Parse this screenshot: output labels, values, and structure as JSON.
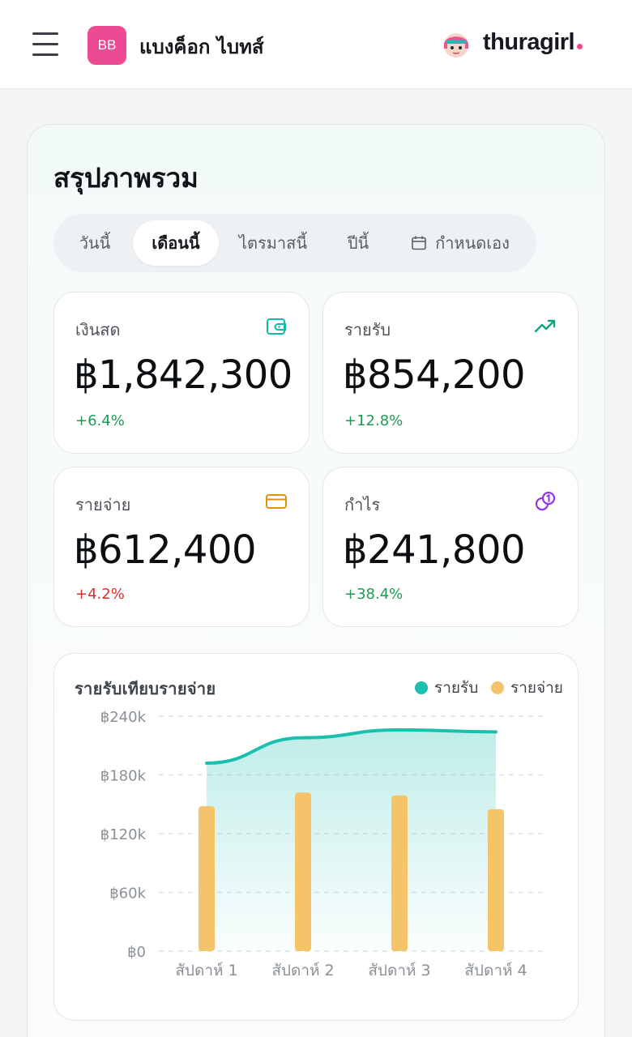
{
  "header": {
    "menu_icon": "hamburger-menu-icon",
    "brand_initials": "BB",
    "brand_name": "แบงค็อก ไบทส์",
    "avatar_icon": "user-avatar-icon",
    "user_name": "thuragirl",
    "brand_color": "#ee4a93"
  },
  "overview": {
    "title": "สรุปภาพรวม",
    "tabs": [
      {
        "label": "วันนี้",
        "active": false
      },
      {
        "label": "เดือนนี้",
        "active": true
      },
      {
        "label": "ไตรมาสนี้",
        "active": false
      },
      {
        "label": "ปีนี้",
        "active": false
      },
      {
        "label": "กำหนดเอง",
        "active": false,
        "icon": "calendar-icon"
      }
    ],
    "cards": [
      {
        "label": "เงินสด",
        "value": "฿1,842,300",
        "change": "+6.4%",
        "trend": "positive",
        "icon": "wallet-icon",
        "icon_color": "#14b8a6"
      },
      {
        "label": "รายรับ",
        "value": "฿854,200",
        "change": "+12.8%",
        "trend": "positive",
        "icon": "trending-up-icon",
        "icon_color": "#14a37f"
      },
      {
        "label": "รายจ่าย",
        "value": "฿612,400",
        "change": "+4.2%",
        "trend": "negative",
        "icon": "credit-card-icon",
        "icon_color": "#e0910f"
      },
      {
        "label": "กำไร",
        "value": "฿241,800",
        "change": "+38.4%",
        "trend": "positive",
        "icon": "coins-icon",
        "icon_color": "#9333ea"
      }
    ]
  },
  "chart_data": {
    "type": "bar",
    "title": "รายรับเทียบรายจ่าย",
    "categories": [
      "สัปดาห์ 1",
      "สัปดาห์ 2",
      "สัปดาห์ 3",
      "สัปดาห์ 4"
    ],
    "series": [
      {
        "name": "รายรับ",
        "type": "area",
        "color": "#1bbfb0",
        "values": [
          192000,
          218000,
          226000,
          224000
        ]
      },
      {
        "name": "รายจ่าย",
        "type": "bar",
        "color": "#f5c46a",
        "values": [
          148000,
          162000,
          159000,
          145000
        ]
      }
    ],
    "ylim": [
      0,
      240000
    ],
    "yticks": [
      0,
      60000,
      120000,
      180000,
      240000
    ],
    "ytick_labels": [
      "฿0",
      "฿60k",
      "฿120k",
      "฿180k",
      "฿240k"
    ],
    "grid": true,
    "legend_position": "top-right"
  }
}
